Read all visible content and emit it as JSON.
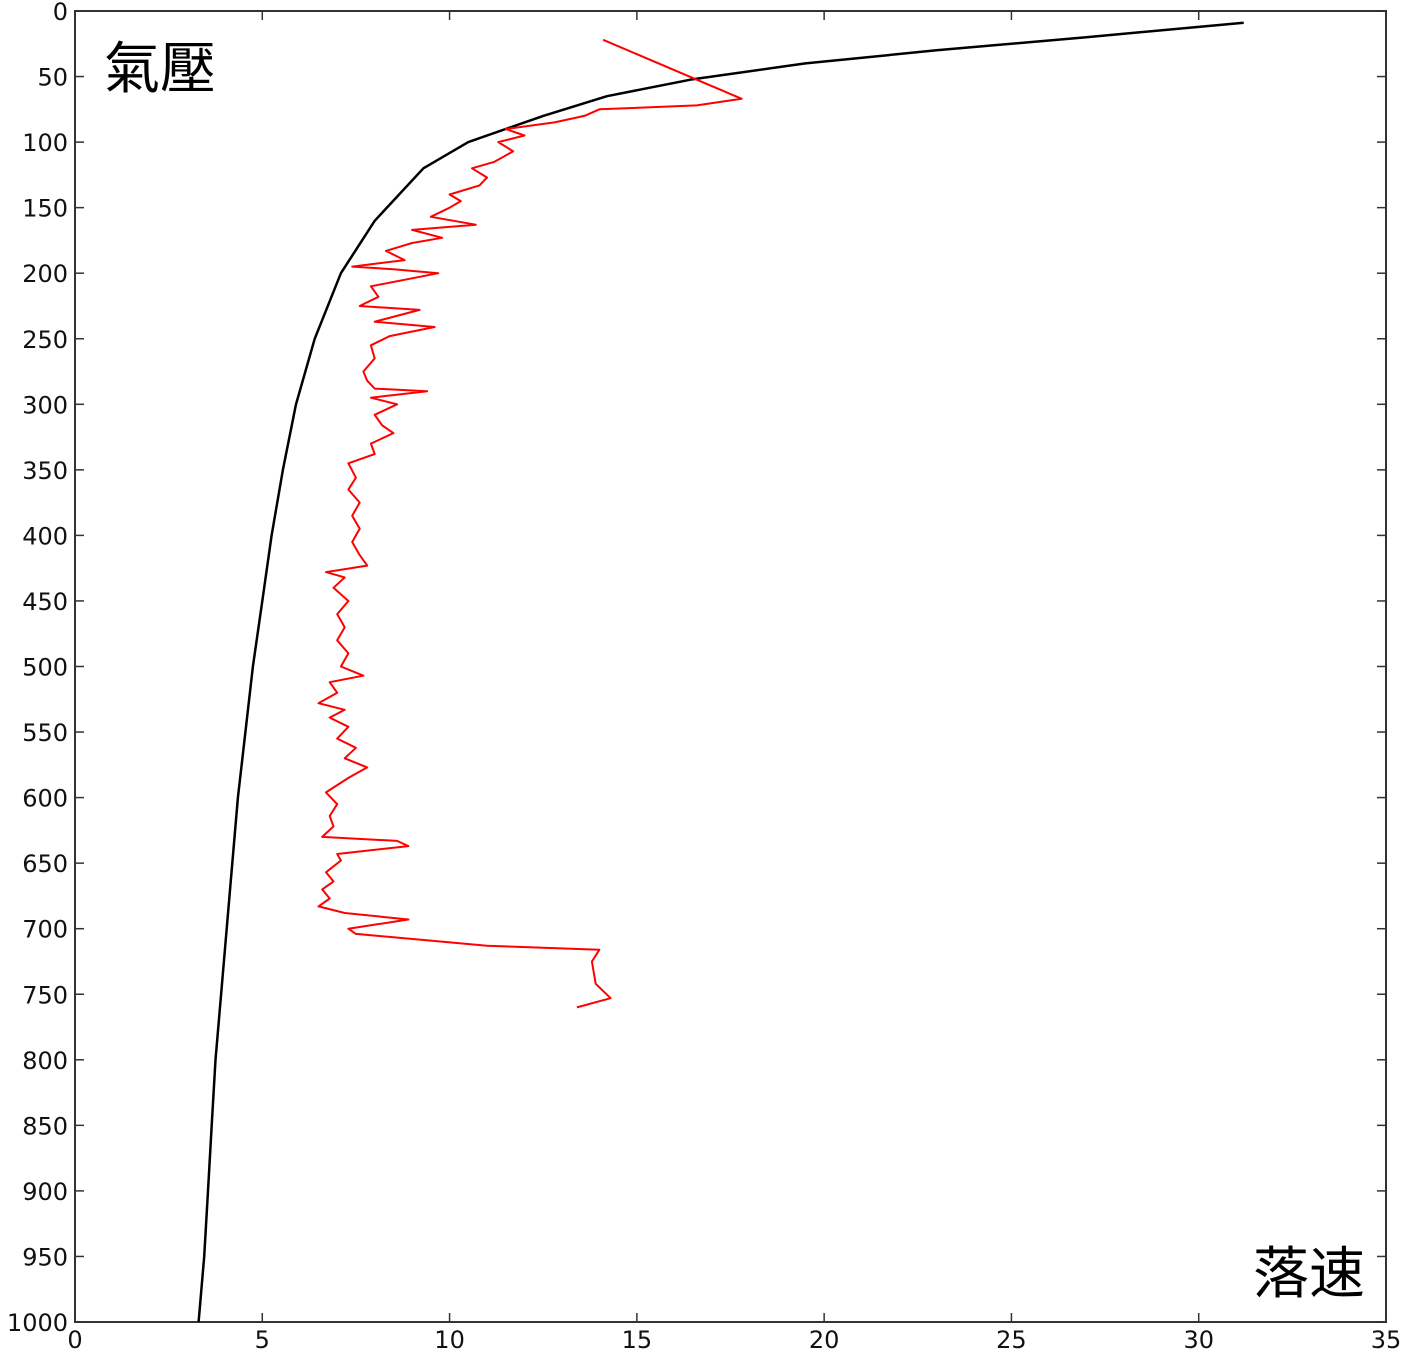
{
  "chart_data": {
    "type": "line",
    "xlabel": "落速",
    "ylabel": "氣壓",
    "xlim": [
      0,
      35
    ],
    "ylim": [
      1000,
      0
    ],
    "x_ticks": [
      0,
      5,
      10,
      15,
      20,
      25,
      30,
      35
    ],
    "y_ticks": [
      0,
      50,
      100,
      150,
      200,
      250,
      300,
      350,
      400,
      450,
      500,
      550,
      600,
      650,
      700,
      750,
      800,
      850,
      900,
      950,
      1000
    ],
    "grid": false,
    "y_inverted": true,
    "colors": {
      "theory": "#000000",
      "observed": "#ff0000",
      "axes": "#333333"
    },
    "series": [
      {
        "color": "#000000",
        "points": [
          [
            3.3,
            1000
          ],
          [
            3.45,
            950
          ],
          [
            3.55,
            900
          ],
          [
            3.65,
            850
          ],
          [
            3.75,
            800
          ],
          [
            3.9,
            750
          ],
          [
            4.05,
            700
          ],
          [
            4.2,
            650
          ],
          [
            4.35,
            600
          ],
          [
            4.55,
            550
          ],
          [
            4.75,
            500
          ],
          [
            5.0,
            450
          ],
          [
            5.25,
            400
          ],
          [
            5.55,
            350
          ],
          [
            5.9,
            300
          ],
          [
            6.4,
            250
          ],
          [
            7.1,
            200
          ],
          [
            8.0,
            160
          ],
          [
            9.3,
            120
          ],
          [
            10.5,
            100
          ],
          [
            12.5,
            80
          ],
          [
            14.2,
            65
          ],
          [
            16.5,
            52
          ],
          [
            19.5,
            40
          ],
          [
            23,
            30
          ],
          [
            27,
            20
          ],
          [
            31.2,
            9
          ]
        ]
      },
      {
        "color": "#ff0000",
        "points": [
          [
            13.4,
            760
          ],
          [
            14.3,
            753
          ],
          [
            13.9,
            742
          ],
          [
            13.8,
            725
          ],
          [
            14.0,
            716
          ],
          [
            11.0,
            713
          ],
          [
            7.5,
            704
          ],
          [
            7.3,
            700
          ],
          [
            8.9,
            693
          ],
          [
            7.2,
            688
          ],
          [
            6.5,
            683
          ],
          [
            6.8,
            677
          ],
          [
            6.6,
            670
          ],
          [
            6.9,
            664
          ],
          [
            6.7,
            657
          ],
          [
            7.1,
            648
          ],
          [
            7.0,
            643
          ],
          [
            8.9,
            637
          ],
          [
            8.6,
            633
          ],
          [
            6.6,
            630
          ],
          [
            6.9,
            622
          ],
          [
            6.8,
            614
          ],
          [
            7.0,
            605
          ],
          [
            6.7,
            596
          ],
          [
            7.3,
            585
          ],
          [
            7.8,
            577
          ],
          [
            7.2,
            570
          ],
          [
            7.5,
            562
          ],
          [
            7.0,
            555
          ],
          [
            7.3,
            546
          ],
          [
            6.8,
            539
          ],
          [
            7.2,
            533
          ],
          [
            6.5,
            528
          ],
          [
            7.0,
            520
          ],
          [
            6.8,
            512
          ],
          [
            7.7,
            507
          ],
          [
            7.1,
            500
          ],
          [
            7.3,
            490
          ],
          [
            7.0,
            480
          ],
          [
            7.2,
            470
          ],
          [
            7.0,
            460
          ],
          [
            7.3,
            450
          ],
          [
            6.9,
            440
          ],
          [
            7.2,
            432
          ],
          [
            6.7,
            428
          ],
          [
            7.8,
            423
          ],
          [
            7.6,
            415
          ],
          [
            7.4,
            405
          ],
          [
            7.6,
            395
          ],
          [
            7.4,
            385
          ],
          [
            7.6,
            375
          ],
          [
            7.3,
            365
          ],
          [
            7.5,
            356
          ],
          [
            7.3,
            345
          ],
          [
            8.0,
            338
          ],
          [
            7.9,
            330
          ],
          [
            8.5,
            322
          ],
          [
            8.2,
            316
          ],
          [
            8.0,
            308
          ],
          [
            8.6,
            300
          ],
          [
            7.9,
            295
          ],
          [
            9.4,
            290
          ],
          [
            8.0,
            288
          ],
          [
            7.8,
            282
          ],
          [
            7.7,
            275
          ],
          [
            8.0,
            265
          ],
          [
            7.9,
            255
          ],
          [
            8.4,
            248
          ],
          [
            9.6,
            241
          ],
          [
            8.0,
            237
          ],
          [
            9.2,
            228
          ],
          [
            7.6,
            225
          ],
          [
            8.1,
            218
          ],
          [
            7.9,
            210
          ],
          [
            9.7,
            200
          ],
          [
            8.5,
            197
          ],
          [
            7.4,
            195
          ],
          [
            8.8,
            190
          ],
          [
            8.3,
            183
          ],
          [
            9.0,
            177
          ],
          [
            9.8,
            173
          ],
          [
            9.0,
            167
          ],
          [
            10.7,
            163
          ],
          [
            9.5,
            157
          ],
          [
            10.0,
            150
          ],
          [
            10.3,
            145
          ],
          [
            10.0,
            140
          ],
          [
            10.8,
            133
          ],
          [
            11.0,
            127
          ],
          [
            10.6,
            120
          ],
          [
            11.2,
            115
          ],
          [
            11.7,
            107
          ],
          [
            11.3,
            100
          ],
          [
            12.0,
            95
          ],
          [
            11.5,
            90
          ],
          [
            12.8,
            85
          ],
          [
            13.6,
            80
          ],
          [
            14.0,
            75
          ],
          [
            16.6,
            72
          ],
          [
            17.8,
            67
          ],
          [
            14.1,
            22
          ]
        ]
      }
    ]
  }
}
